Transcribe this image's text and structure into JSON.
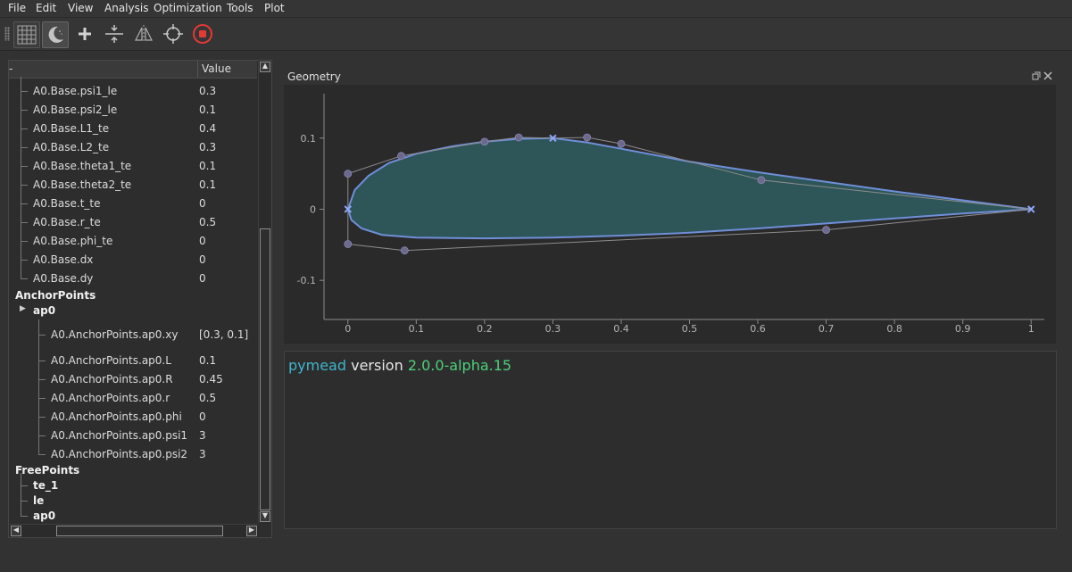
{
  "menu": [
    "File",
    "Edit",
    "View",
    "Analysis",
    "Optimization",
    "Tools",
    "Plot"
  ],
  "toolbar": {
    "buttons": [
      "grid-icon",
      "dark-mode-moon-icon",
      "add-plus-icon",
      "split-compress-icon",
      "mirror-symmetry-icon",
      "crosshair-target-icon",
      "stop-record-icon"
    ],
    "stop_color": "#e53935"
  },
  "tree": {
    "header": {
      "name": "-",
      "value": "Value"
    },
    "rows": [
      {
        "name": "A0.Base.psi1_le",
        "value": "0.3",
        "bold": false
      },
      {
        "name": "A0.Base.psi2_le",
        "value": "0.1",
        "bold": false
      },
      {
        "name": "A0.Base.L1_te",
        "value": "0.4",
        "bold": false
      },
      {
        "name": "A0.Base.L2_te",
        "value": "0.3",
        "bold": false
      },
      {
        "name": "A0.Base.theta1_te",
        "value": "0.1",
        "bold": false
      },
      {
        "name": "A0.Base.theta2_te",
        "value": "0.1",
        "bold": false
      },
      {
        "name": "A0.Base.t_te",
        "value": "0",
        "bold": false
      },
      {
        "name": "A0.Base.r_te",
        "value": "0.5",
        "bold": false
      },
      {
        "name": "A0.Base.phi_te",
        "value": "0",
        "bold": false
      },
      {
        "name": "A0.Base.dx",
        "value": "0",
        "bold": false
      },
      {
        "name": "A0.Base.dy",
        "value": "0",
        "bold": false
      },
      {
        "name": "AnchorPoints",
        "value": "",
        "bold": true
      },
      {
        "name": "ap0",
        "value": "",
        "bold": true
      },
      {
        "name": "A0.AnchorPoints.ap0.xy",
        "value": "[0.3, 0.1]",
        "bold": false
      },
      {
        "name": "A0.AnchorPoints.ap0.L",
        "value": "0.1",
        "bold": false
      },
      {
        "name": "A0.AnchorPoints.ap0.R",
        "value": "0.45",
        "bold": false
      },
      {
        "name": "A0.AnchorPoints.ap0.r",
        "value": "0.5",
        "bold": false
      },
      {
        "name": "A0.AnchorPoints.ap0.phi",
        "value": "0",
        "bold": false
      },
      {
        "name": "A0.AnchorPoints.ap0.psi1",
        "value": "3",
        "bold": false
      },
      {
        "name": "A0.AnchorPoints.ap0.psi2",
        "value": "3",
        "bold": false
      },
      {
        "name": "FreePoints",
        "value": "",
        "bold": true
      },
      {
        "name": "te_1",
        "value": "",
        "bold": true
      },
      {
        "name": "le",
        "value": "",
        "bold": true
      },
      {
        "name": "ap0",
        "value": "",
        "bold": true
      }
    ]
  },
  "geometry": {
    "title": "Geometry",
    "x_ticks": [
      "0",
      "0.1",
      "0.2",
      "0.3",
      "0.4",
      "0.5",
      "0.6",
      "0.7",
      "0.8",
      "0.9",
      "1"
    ],
    "y_ticks": [
      "0.1",
      "0",
      "-0.1"
    ],
    "xlim": [
      -0.035,
      1.035
    ],
    "ylim": [
      -0.155,
      0.175
    ],
    "colors": {
      "outline": "#6f8fd8",
      "fill": "#2e5558",
      "control_point": "#6c6a8c",
      "control_line": "#8c8c8c"
    },
    "control_polygon": [
      [
        0.3,
        0.1
      ],
      [
        0.35,
        0.101
      ],
      [
        0.4,
        0.092
      ],
      [
        0.605,
        0.041
      ],
      [
        1.0,
        0.0
      ],
      [
        0.7,
        -0.029
      ],
      [
        0.083,
        -0.058
      ],
      [
        0.0,
        -0.049
      ],
      [
        0.0,
        0.0
      ],
      [
        0.0,
        0.05
      ],
      [
        0.078,
        0.075
      ],
      [
        0.2,
        0.095
      ],
      [
        0.25,
        0.101
      ],
      [
        0.3,
        0.1
      ]
    ],
    "control_points": [
      [
        0.0,
        0.05
      ],
      [
        0.078,
        0.075
      ],
      [
        0.2,
        0.095
      ],
      [
        0.25,
        0.101
      ],
      [
        0.35,
        0.101
      ],
      [
        0.4,
        0.092
      ],
      [
        0.605,
        0.041
      ],
      [
        0.7,
        -0.029
      ],
      [
        0.083,
        -0.058
      ],
      [
        0.0,
        -0.049
      ]
    ],
    "anchor_points": [
      [
        0.3,
        0.1
      ],
      [
        1.0,
        0.0
      ],
      [
        0.0,
        0.0
      ]
    ],
    "upper_surface": [
      [
        1.0,
        0.0
      ],
      [
        0.8,
        0.025
      ],
      [
        0.6,
        0.052
      ],
      [
        0.5,
        0.067
      ],
      [
        0.4,
        0.085
      ],
      [
        0.35,
        0.094
      ],
      [
        0.3,
        0.1
      ],
      [
        0.25,
        0.099
      ],
      [
        0.2,
        0.095
      ],
      [
        0.15,
        0.088
      ],
      [
        0.1,
        0.078
      ],
      [
        0.06,
        0.065
      ],
      [
        0.03,
        0.047
      ],
      [
        0.01,
        0.027
      ],
      [
        0.0,
        0.0
      ]
    ],
    "lower_surface": [
      [
        0.0,
        0.0
      ],
      [
        0.005,
        -0.015
      ],
      [
        0.02,
        -0.027
      ],
      [
        0.05,
        -0.036
      ],
      [
        0.1,
        -0.04
      ],
      [
        0.2,
        -0.041
      ],
      [
        0.3,
        -0.04
      ],
      [
        0.4,
        -0.037
      ],
      [
        0.5,
        -0.033
      ],
      [
        0.6,
        -0.027
      ],
      [
        0.7,
        -0.02
      ],
      [
        0.8,
        -0.013
      ],
      [
        0.9,
        -0.006
      ],
      [
        1.0,
        0.0
      ]
    ]
  },
  "console": {
    "app": "pymead",
    "word": "version",
    "version": "2.0.0-alpha.15",
    "colors": {
      "app": "#3fb6cc",
      "word": "#e8e8e8",
      "version": "#4dcf7a"
    }
  }
}
